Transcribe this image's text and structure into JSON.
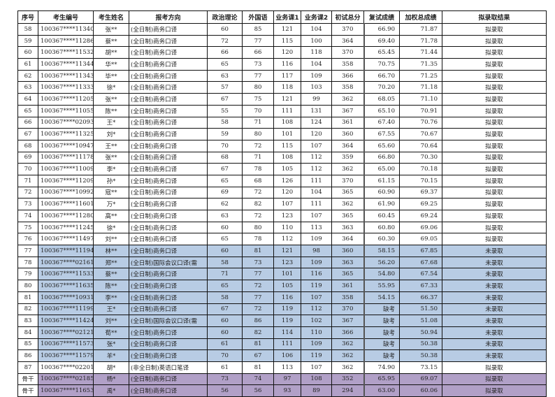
{
  "headers": [
    "序号",
    "考生编号",
    "考生姓名",
    "报考方向",
    "政治理论",
    "外国语",
    "业务课1",
    "业务课2",
    "初试总分",
    "复试成绩",
    "加权总成绩",
    "拟录取结果"
  ],
  "colors": {
    "not_admitted_row": "#b8cce4",
    "backbone_row": "#b1a0c7"
  },
  "rows": [
    {
      "style": "plain",
      "c": [
        "58",
        "100367****11340",
        "张**",
        "(全日制)商务口译",
        "60",
        "85",
        "121",
        "104",
        "370",
        "66.90",
        "71.87",
        "拟录取"
      ]
    },
    {
      "style": "plain",
      "c": [
        "59",
        "100367****11286",
        "蔡**",
        "(全日制)商务口译",
        "72",
        "77",
        "115",
        "100",
        "364",
        "69.40",
        "71.78",
        "拟录取"
      ]
    },
    {
      "style": "plain",
      "c": [
        "60",
        "100367****11532",
        "胡**",
        "(全日制)商务口译",
        "66",
        "66",
        "120",
        "118",
        "370",
        "65.45",
        "71.44",
        "拟录取"
      ]
    },
    {
      "style": "plain",
      "c": [
        "61",
        "100367****11344",
        "华**",
        "(全日制)商务口译",
        "65",
        "73",
        "116",
        "104",
        "358",
        "70.75",
        "71.35",
        "拟录取"
      ]
    },
    {
      "style": "plain",
      "c": [
        "62",
        "100367****11343",
        "毕**",
        "(全日制)商务口译",
        "63",
        "77",
        "117",
        "109",
        "366",
        "66.70",
        "71.25",
        "拟录取"
      ]
    },
    {
      "style": "plain",
      "c": [
        "63",
        "100367****11333",
        "徐*",
        "(全日制)商务口译",
        "57",
        "80",
        "118",
        "103",
        "358",
        "70.20",
        "71.18",
        "拟录取"
      ]
    },
    {
      "style": "plain",
      "c": [
        "64",
        "100367****11205",
        "张**",
        "(全日制)商务口译",
        "67",
        "75",
        "121",
        "99",
        "362",
        "68.05",
        "71.10",
        "拟录取"
      ]
    },
    {
      "style": "plain",
      "c": [
        "65",
        "100367****11055",
        "陈**",
        "(全日制)商务口译",
        "55",
        "70",
        "111",
        "131",
        "367",
        "65.10",
        "70.91",
        "拟录取"
      ]
    },
    {
      "style": "plain",
      "c": [
        "66",
        "100367****02093",
        "王*",
        "(全日制)商务口译",
        "58",
        "71",
        "108",
        "124",
        "361",
        "67.40",
        "70.76",
        "拟录取"
      ]
    },
    {
      "style": "plain",
      "c": [
        "67",
        "100367****11325",
        "刘*",
        "(全日制)商务口译",
        "59",
        "80",
        "101",
        "120",
        "360",
        "67.55",
        "70.67",
        "拟录取"
      ]
    },
    {
      "style": "plain",
      "c": [
        "68",
        "100367****10947",
        "王**",
        "(全日制)商务口译",
        "70",
        "72",
        "115",
        "107",
        "364",
        "65.60",
        "70.64",
        "拟录取"
      ]
    },
    {
      "style": "plain",
      "c": [
        "69",
        "100367****11178",
        "张**",
        "(全日制)商务口译",
        "68",
        "71",
        "108",
        "112",
        "359",
        "66.80",
        "70.30",
        "拟录取"
      ]
    },
    {
      "style": "plain",
      "c": [
        "70",
        "100367****11009",
        "李*",
        "(全日制)商务口译",
        "67",
        "78",
        "105",
        "112",
        "362",
        "65.00",
        "70.18",
        "拟录取"
      ]
    },
    {
      "style": "plain",
      "c": [
        "71",
        "100367****11209",
        "孙*",
        "(全日制)商务口译",
        "65",
        "68",
        "126",
        "111",
        "370",
        "61.15",
        "70.15",
        "拟录取"
      ]
    },
    {
      "style": "plain",
      "c": [
        "72",
        "100367****10992",
        "寇**",
        "(全日制)商务口译",
        "69",
        "72",
        "120",
        "104",
        "365",
        "60.90",
        "69.37",
        "拟录取"
      ]
    },
    {
      "style": "plain",
      "c": [
        "73",
        "100367****11601",
        "万*",
        "(全日制)商务口译",
        "62",
        "82",
        "107",
        "111",
        "362",
        "61.90",
        "69.25",
        "拟录取"
      ]
    },
    {
      "style": "plain",
      "c": [
        "74",
        "100367****11280",
        "高**",
        "(全日制)商务口译",
        "63",
        "72",
        "123",
        "107",
        "365",
        "60.45",
        "69.24",
        "拟录取"
      ]
    },
    {
      "style": "plain",
      "c": [
        "75",
        "100367****11245",
        "徐*",
        "(全日制)商务口译",
        "60",
        "80",
        "110",
        "113",
        "363",
        "60.80",
        "69.06",
        "拟录取"
      ]
    },
    {
      "style": "plain",
      "c": [
        "76",
        "100367****11497",
        "刘**",
        "(全日制)商务口译",
        "65",
        "78",
        "112",
        "109",
        "364",
        "60.30",
        "69.05",
        "拟录取"
      ]
    },
    {
      "style": "blue",
      "c": [
        "77",
        "100367****11194",
        "林**",
        "(全日制)商务口译",
        "60",
        "81",
        "121",
        "98",
        "360",
        "58.15",
        "67.85",
        "未录取"
      ]
    },
    {
      "style": "blue",
      "c": [
        "78",
        "100367****02161",
        "郑**",
        "(全日制)国际会议口译(需",
        "58",
        "73",
        "123",
        "109",
        "363",
        "56.20",
        "67.68",
        "未录取"
      ]
    },
    {
      "style": "blue",
      "c": [
        "79",
        "100367****11533",
        "蔡**",
        "(全日制)商务口译",
        "71",
        "77",
        "101",
        "116",
        "365",
        "54.80",
        "67.54",
        "未录取"
      ]
    },
    {
      "style": "blue",
      "c": [
        "80",
        "100367****11635",
        "陈**",
        "(全日制)商务口译",
        "65",
        "72",
        "105",
        "119",
        "361",
        "55.95",
        "67.33",
        "未录取"
      ]
    },
    {
      "style": "blue",
      "c": [
        "81",
        "100367****10931",
        "李**",
        "(全日制)商务口译",
        "58",
        "77",
        "116",
        "107",
        "358",
        "54.15",
        "66.37",
        "未录取"
      ]
    },
    {
      "style": "blue",
      "c": [
        "82",
        "100367****11199",
        "王*",
        "(全日制)商务口译",
        "67",
        "72",
        "119",
        "112",
        "370",
        "缺考",
        "51.50",
        "未录取"
      ]
    },
    {
      "style": "blue",
      "c": [
        "83",
        "100367****11424",
        "刘**",
        "(全日制)国际会议口译(需",
        "60",
        "86",
        "119",
        "102",
        "367",
        "缺考",
        "51.08",
        "未录取"
      ]
    },
    {
      "style": "blue",
      "c": [
        "84",
        "100367****02121",
        "荀**",
        "(全日制)商务口译",
        "60",
        "82",
        "114",
        "110",
        "366",
        "缺考",
        "50.94",
        "未录取"
      ]
    },
    {
      "style": "blue",
      "c": [
        "85",
        "100367****11573",
        "张*",
        "(全日制)商务口译",
        "61",
        "81",
        "111",
        "109",
        "362",
        "缺考",
        "50.38",
        "未录取"
      ]
    },
    {
      "style": "blue",
      "c": [
        "86",
        "100367****11579",
        "羊*",
        "(全日制)商务口译",
        "70",
        "67",
        "106",
        "119",
        "362",
        "缺考",
        "50.38",
        "未录取"
      ]
    },
    {
      "style": "plain",
      "c": [
        "87",
        "100367****02201",
        "胡*",
        "(非全日制)英语口笔译",
        "61",
        "81",
        "113",
        "107",
        "362",
        "74.90",
        "73.15",
        "拟录取"
      ]
    },
    {
      "style": "purple",
      "c": [
        "骨干",
        "100367****02185",
        "杨*",
        "(全日制)商务口译",
        "73",
        "74",
        "97",
        "108",
        "352",
        "65.95",
        "69.07",
        "拟录取"
      ]
    },
    {
      "style": "purple",
      "c": [
        "骨干",
        "100367****11653",
        "禹*",
        "(全日制)商务口译",
        "56",
        "56",
        "93",
        "89",
        "294",
        "63.00",
        "60.06",
        "拟录取"
      ]
    }
  ]
}
